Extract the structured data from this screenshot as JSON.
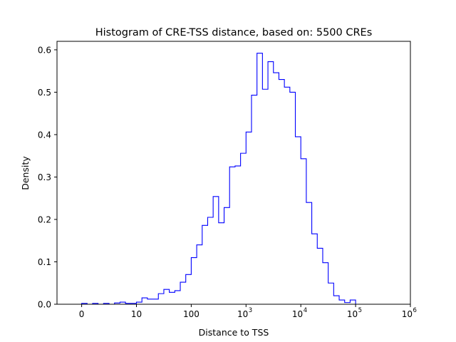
{
  "chart_data": {
    "type": "histogram",
    "title": "Histogram of CRE-TSS distance, based on: 5500 CREs",
    "xlabel": "Distance to TSS",
    "ylabel": "Density",
    "x_scale": "symlog",
    "x_lim": [
      -0.45,
      6
    ],
    "ylim": [
      0,
      0.62
    ],
    "grid": false,
    "x_ticks": [
      {
        "pos": 0,
        "base": "0",
        "exp": ""
      },
      {
        "pos": 1,
        "base": "10",
        "exp": ""
      },
      {
        "pos": 2,
        "base": "100",
        "exp": ""
      },
      {
        "pos": 3,
        "base": "10",
        "exp": "3"
      },
      {
        "pos": 4,
        "base": "10",
        "exp": "4"
      },
      {
        "pos": 5,
        "base": "10",
        "exp": "5"
      },
      {
        "pos": 6,
        "base": "10",
        "exp": "6"
      }
    ],
    "y_ticks": [
      {
        "value": 0.0,
        "label": "0.0"
      },
      {
        "value": 0.1,
        "label": "0.1"
      },
      {
        "value": 0.2,
        "label": "0.2"
      },
      {
        "value": 0.3,
        "label": "0.3"
      },
      {
        "value": 0.4,
        "label": "0.4"
      },
      {
        "value": 0.5,
        "label": "0.5"
      },
      {
        "value": 0.6,
        "label": "0.6"
      }
    ],
    "bin_edges": [
      0,
      0.1,
      0.2,
      0.3,
      0.4,
      0.5,
      0.6,
      0.7,
      0.8,
      0.9,
      1.0,
      1.1,
      1.2,
      1.3,
      1.4,
      1.5,
      1.6,
      1.7,
      1.8,
      1.9,
      2.0,
      2.1,
      2.2,
      2.3,
      2.4,
      2.5,
      2.6,
      2.7,
      2.8,
      2.9,
      3.0,
      3.1,
      3.2,
      3.3,
      3.4,
      3.5,
      3.6,
      3.7,
      3.8,
      3.9,
      4.0,
      4.1,
      4.2,
      4.3,
      4.4,
      4.5,
      4.6,
      4.7,
      4.8,
      4.9,
      5.0,
      5.1,
      5.2,
      5.3,
      5.4,
      5.5,
      5.6,
      5.7
    ],
    "density": [
      0.002,
      0.0,
      0.002,
      0.0,
      0.002,
      0.0,
      0.003,
      0.005,
      0.002,
      0.002,
      0.005,
      0.015,
      0.012,
      0.012,
      0.025,
      0.035,
      0.028,
      0.032,
      0.052,
      0.07,
      0.11,
      0.14,
      0.186,
      0.205,
      0.254,
      0.192,
      0.228,
      0.324,
      0.326,
      0.356,
      0.406,
      0.493,
      0.592,
      0.507,
      0.572,
      0.546,
      0.53,
      0.512,
      0.5,
      0.395,
      0.343,
      0.24,
      0.166,
      0.132,
      0.098,
      0.05,
      0.02,
      0.01,
      0.004,
      0.01,
      0.0,
      0.0,
      0.0,
      0.0,
      0.0,
      0.0,
      0.0
    ],
    "color": "#0000ff"
  }
}
